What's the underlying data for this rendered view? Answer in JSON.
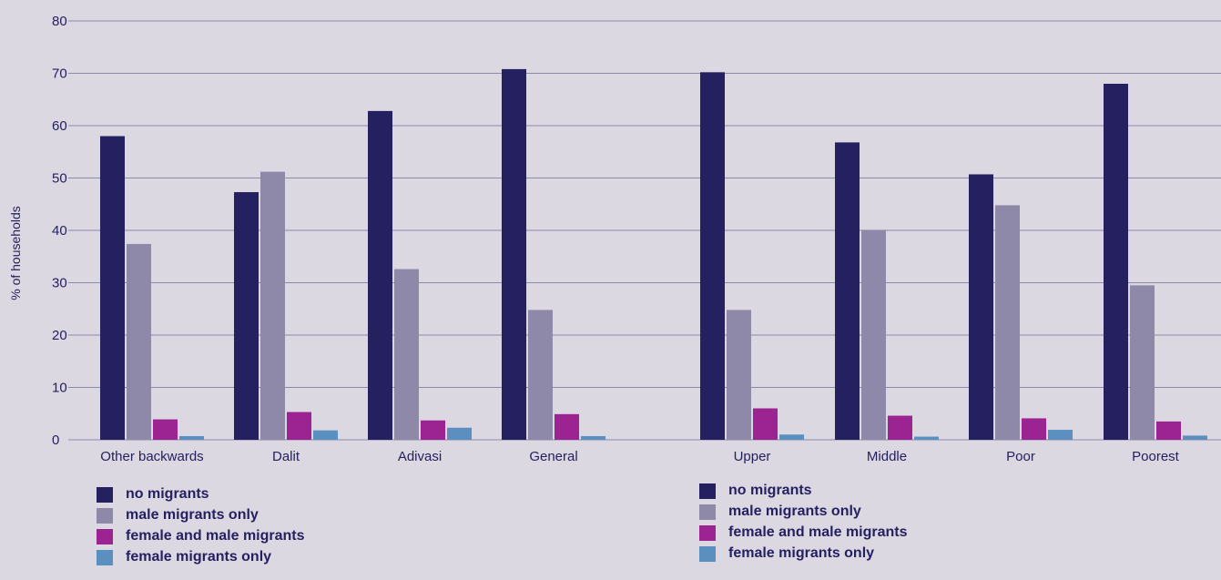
{
  "chart_data": {
    "type": "bar",
    "ylabel": "% of households",
    "ylim": [
      0,
      80
    ],
    "yticks": [
      0,
      10,
      20,
      30,
      40,
      50,
      60,
      70,
      80
    ],
    "grid": true,
    "groups": [
      {
        "categories": [
          "Other backwards",
          "Dalit",
          "Adivasi",
          "General"
        ]
      },
      {
        "categories": [
          "Upper",
          "Middle",
          "Poor",
          "Poorest"
        ]
      }
    ],
    "categories": [
      "Other backwards",
      "Dalit",
      "Adivasi",
      "General",
      "Upper",
      "Middle",
      "Poor",
      "Poorest"
    ],
    "series": [
      {
        "name": "no migrants",
        "color": "#25205f",
        "values": [
          58,
          47.3,
          62.8,
          70.8,
          70.2,
          56.8,
          50.7,
          68
        ]
      },
      {
        "name": "male migrants only",
        "color": "#8f89a9",
        "values": [
          37.4,
          51.2,
          32.6,
          24.8,
          24.8,
          40.1,
          44.8,
          29.5
        ]
      },
      {
        "name": "female and male migrants",
        "color": "#9b2492",
        "values": [
          3.9,
          5.3,
          3.7,
          4.9,
          6,
          4.6,
          4.1,
          3.5
        ]
      },
      {
        "name": "female migrants only",
        "color": "#5b8fbf",
        "values": [
          0.7,
          1.8,
          2.3,
          0.7,
          1,
          0.6,
          1.9,
          0.8
        ]
      }
    ],
    "legend": [
      {
        "placement": "bottom-left",
        "labels": [
          "no migrants",
          "male migrants only",
          "female and male migrants",
          "female migrants only"
        ]
      },
      {
        "placement": "bottom-right",
        "labels": [
          "no migrants",
          "male migrants only",
          "female and male migrants",
          "female migrants only"
        ]
      }
    ]
  }
}
